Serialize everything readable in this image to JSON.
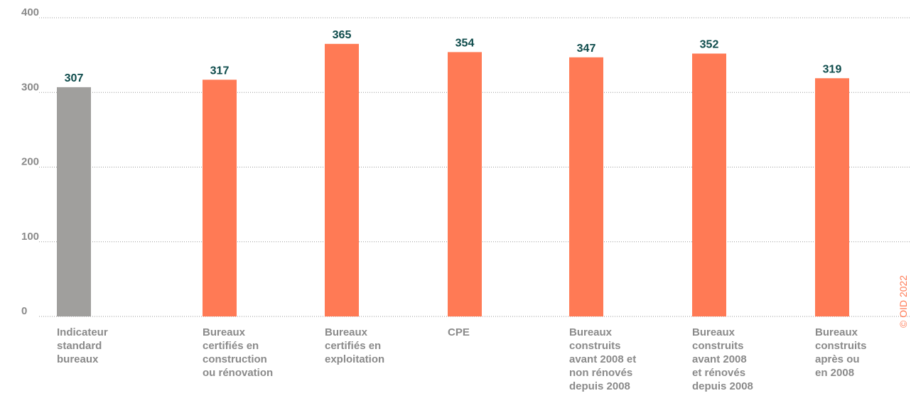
{
  "chart_data": {
    "type": "bar",
    "categories": [
      "Indicateur\nstandard\nbureaux",
      "Bureaux\ncertifiés en\nconstruction\nou rénovation",
      "Bureaux\ncertifiés en\nexploitation",
      "CPE",
      "Bureaux\nconstruits\navant 2008 et\nnon rénovés\ndepuis 2008",
      "Bureaux\nconstruits\navant 2008\net rénovés\ndepuis 2008",
      "Bureaux\nconstruits\naprès ou\nen 2008"
    ],
    "values": [
      307,
      317,
      365,
      354,
      347,
      352,
      319
    ],
    "colors": [
      "#a09f9d",
      "#ff7a55",
      "#ff7a55",
      "#ff7a55",
      "#ff7a55",
      "#ff7a55",
      "#ff7a55"
    ],
    "ylim": [
      0,
      400
    ],
    "yticks": [
      0,
      100,
      200,
      300,
      400
    ],
    "grid": true,
    "copyright": "© OID 2022"
  }
}
